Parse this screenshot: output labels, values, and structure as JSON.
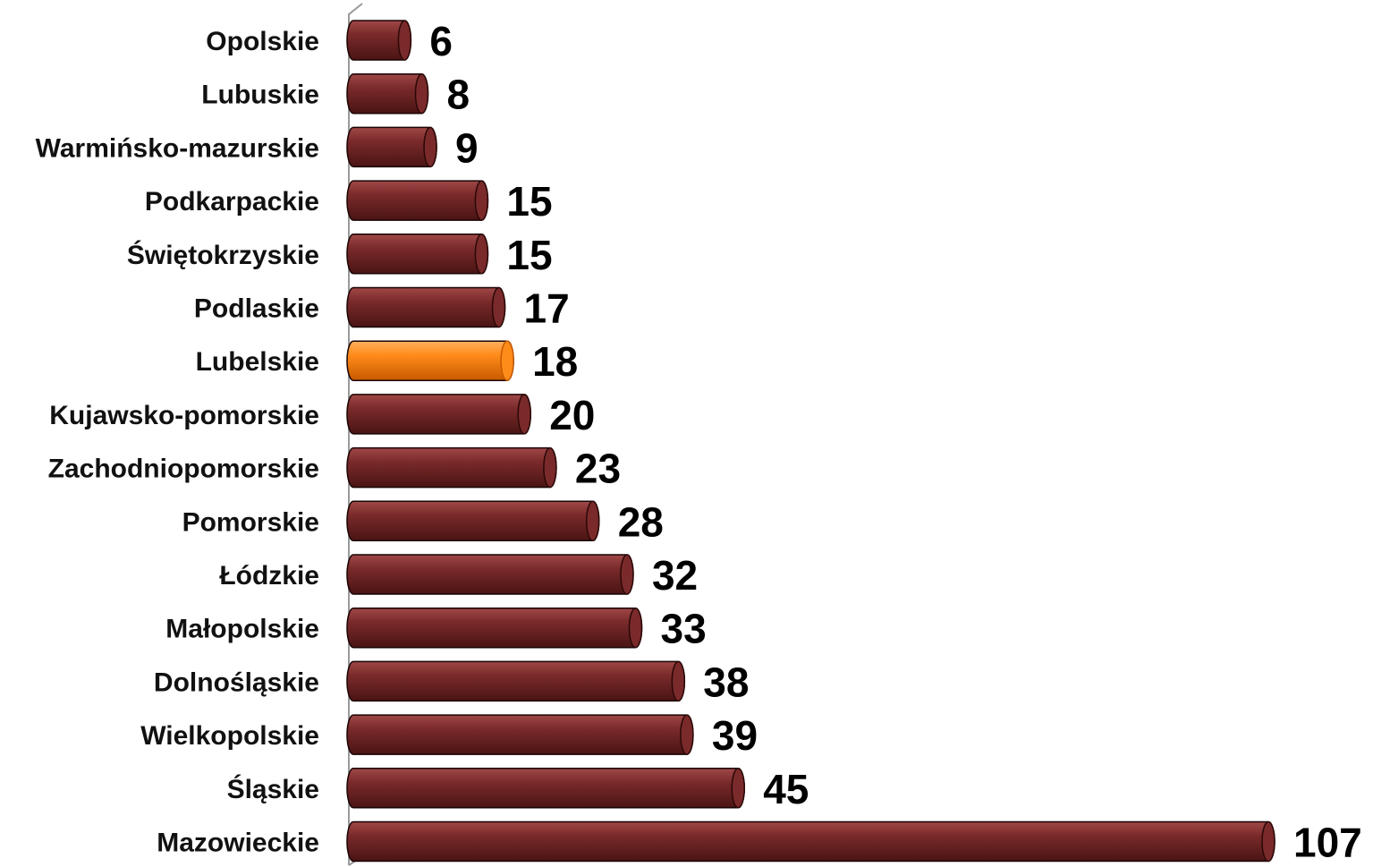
{
  "chart_data": {
    "type": "bar",
    "orientation": "horizontal",
    "style": "3d-cylinder",
    "title": "",
    "xlabel": "",
    "ylabel": "",
    "grid": false,
    "legend": "none",
    "xlim": [
      0,
      107
    ],
    "categories": [
      "Opolskie",
      "Lubuskie",
      "Warmińsko-mazurskie",
      "Podkarpackie",
      "Świętokrzyskie",
      "Podlaskie",
      "Lubelskie",
      "Kujawsko-pomorskie",
      "Zachodniopomorskie",
      "Pomorskie",
      "Łódzkie",
      "Małopolskie",
      "Dolnośląskie",
      "Wielkopolskie",
      "Śląskie",
      "Mazowieckie"
    ],
    "values": [
      6,
      8,
      9,
      15,
      15,
      17,
      18,
      20,
      23,
      28,
      32,
      33,
      38,
      39,
      45,
      107
    ],
    "data_labels": [
      "6",
      "8",
      "9",
      "15",
      "15",
      "17",
      "18",
      "20",
      "23",
      "28",
      "32",
      "33",
      "38",
      "39",
      "45",
      "107"
    ],
    "highlight_category": "Lubelskie",
    "colors": {
      "bar": "#7a2a2a",
      "bar_dark": "#4a1414",
      "bar_light": "#a04848",
      "highlight": "#ff8c1a",
      "highlight_dark": "#c85a00",
      "highlight_light": "#ffb060",
      "axis": "#9a9a9a",
      "label": "#111111"
    }
  }
}
